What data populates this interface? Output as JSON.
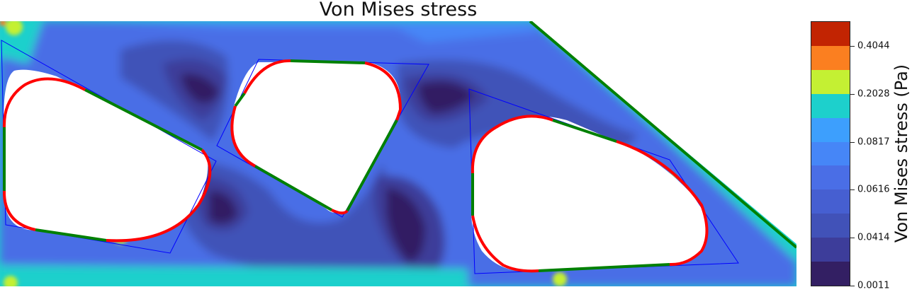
{
  "chart_data": {
    "type": "heatmap",
    "title": "Von Mises stress",
    "colorbar": {
      "label": "Von Mises stress (Pa)",
      "tick_labels": [
        "0.0011",
        "0.0414",
        "0.0616",
        "0.0817",
        "0.2028",
        "0.4044"
      ],
      "tick_band_index": [
        0,
        2,
        4,
        6,
        8,
        10
      ],
      "levels": 11,
      "colors": [
        "#331f63",
        "#3d3d9a",
        "#4152b8",
        "#465fd1",
        "#4a6ee6",
        "#4686f7",
        "#3d9ffd",
        "#1dd0cc",
        "#c4f033",
        "#fb7f20",
        "#c22402"
      ]
    },
    "field": {
      "background_color": "#1dd0cc",
      "holes": 3,
      "boundary_colors": {
        "curved": "#ff0000",
        "straight": "#008000",
        "control_polygon": "#0000ff"
      }
    }
  }
}
